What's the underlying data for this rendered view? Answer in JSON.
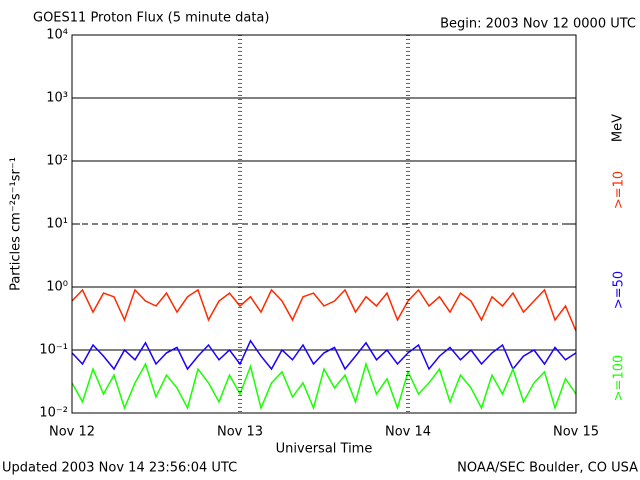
{
  "chart_data": {
    "type": "line",
    "title": "GOES11 Proton Flux (5 minute data)",
    "subtitle": "Begin: 2003 Nov 12 0000 UTC",
    "xlabel": "Universal Time",
    "ylabel": "Particles cm⁻²s⁻¹sr⁻¹",
    "legend_unit": "MeV",
    "footer_left": "Updated 2003 Nov 14 23:56:04 UTC",
    "footer_right": "NOAA/SEC Boulder, CO USA",
    "log_y": true,
    "xlim": [
      0,
      72
    ],
    "xticks": [
      {
        "value": 0,
        "label": "Nov 12"
      },
      {
        "value": 24,
        "label": "Nov 13"
      },
      {
        "value": 48,
        "label": "Nov 14"
      },
      {
        "value": 72,
        "label": "Nov 15"
      }
    ],
    "ylim": [
      0.01,
      10000
    ],
    "yticks": [
      {
        "value": 0.01,
        "label": "10⁻²"
      },
      {
        "value": 0.1,
        "label": "10⁻¹"
      },
      {
        "value": 1,
        "label": "10⁰"
      },
      {
        "value": 10,
        "label": "10¹"
      },
      {
        "value": 100,
        "label": "10²"
      },
      {
        "value": 1000,
        "label": "10³"
      },
      {
        "value": 10000,
        "label": "10⁴"
      }
    ],
    "threshold_lines": [
      {
        "value": 0.1,
        "dashed": false
      },
      {
        "value": 1,
        "dashed": false
      },
      {
        "value": 10,
        "dashed": true
      },
      {
        "value": 100,
        "dashed": false
      },
      {
        "value": 1000,
        "dashed": false
      }
    ],
    "x": [
      0,
      1.5,
      3,
      4.5,
      6,
      7.5,
      9,
      10.5,
      12,
      13.5,
      15,
      16.5,
      18,
      19.5,
      21,
      22.5,
      24,
      25.5,
      27,
      28.5,
      30,
      31.5,
      33,
      34.5,
      36,
      37.5,
      39,
      40.5,
      42,
      43.5,
      45,
      46.5,
      48,
      49.5,
      51,
      52.5,
      54,
      55.5,
      57,
      58.5,
      60,
      61.5,
      63,
      64.5,
      66,
      67.5,
      69,
      70.5,
      72
    ],
    "series": [
      {
        "name": ">=10",
        "color": "#ff2a00",
        "values": [
          0.6,
          0.9,
          0.4,
          0.8,
          0.7,
          0.3,
          0.9,
          0.6,
          0.5,
          0.8,
          0.4,
          0.7,
          0.9,
          0.3,
          0.6,
          0.8,
          0.5,
          0.7,
          0.4,
          0.9,
          0.6,
          0.3,
          0.7,
          0.8,
          0.5,
          0.6,
          0.9,
          0.4,
          0.7,
          0.5,
          0.8,
          0.3,
          0.6,
          0.9,
          0.5,
          0.7,
          0.4,
          0.8,
          0.6,
          0.3,
          0.7,
          0.5,
          0.8,
          0.4,
          0.6,
          0.9,
          0.3,
          0.5,
          0.2
        ]
      },
      {
        "name": ">=50",
        "color": "#1a00ff",
        "values": [
          0.09,
          0.06,
          0.12,
          0.08,
          0.05,
          0.1,
          0.07,
          0.13,
          0.06,
          0.09,
          0.11,
          0.05,
          0.08,
          0.12,
          0.07,
          0.1,
          0.06,
          0.14,
          0.08,
          0.05,
          0.1,
          0.07,
          0.12,
          0.06,
          0.09,
          0.11,
          0.05,
          0.08,
          0.13,
          0.07,
          0.1,
          0.06,
          0.09,
          0.12,
          0.05,
          0.08,
          0.11,
          0.07,
          0.1,
          0.06,
          0.09,
          0.12,
          0.05,
          0.08,
          0.1,
          0.06,
          0.11,
          0.07,
          0.09
        ]
      },
      {
        "name": ">=100",
        "color": "#19ff00",
        "values": [
          0.03,
          0.015,
          0.05,
          0.02,
          0.04,
          0.012,
          0.03,
          0.06,
          0.018,
          0.04,
          0.025,
          0.012,
          0.05,
          0.03,
          0.015,
          0.04,
          0.02,
          0.055,
          0.012,
          0.03,
          0.045,
          0.018,
          0.03,
          0.012,
          0.05,
          0.025,
          0.04,
          0.015,
          0.06,
          0.02,
          0.035,
          0.012,
          0.045,
          0.02,
          0.03,
          0.05,
          0.015,
          0.04,
          0.025,
          0.012,
          0.04,
          0.02,
          0.05,
          0.015,
          0.03,
          0.045,
          0.012,
          0.035,
          0.02
        ]
      }
    ]
  }
}
